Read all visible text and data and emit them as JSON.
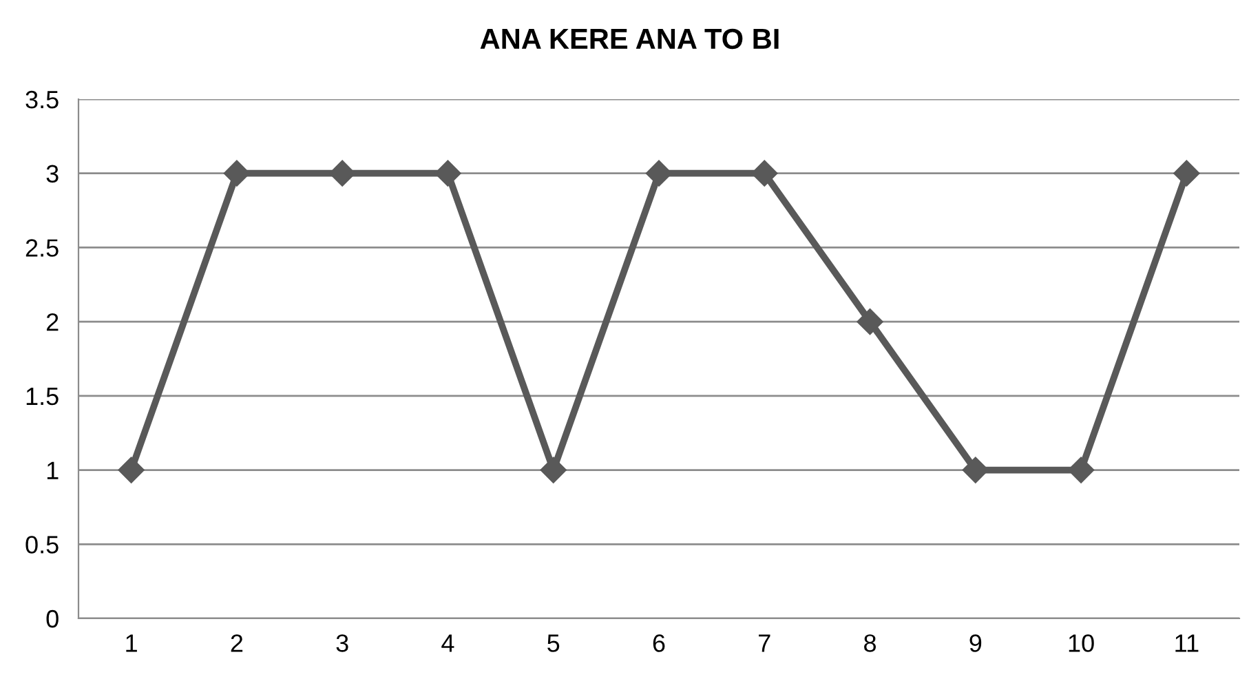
{
  "chart_data": {
    "type": "line",
    "title": "ANA KERE ANA TO BI",
    "categories": [
      "1",
      "2",
      "3",
      "4",
      "5",
      "6",
      "7",
      "8",
      "9",
      "10",
      "11"
    ],
    "series": [
      {
        "color": "#595959",
        "values": [
          1,
          3,
          3,
          3,
          1,
          3,
          3,
          2,
          1,
          1,
          3
        ]
      }
    ],
    "ylim": [
      0,
      3.5
    ],
    "yticks": [
      0,
      0.5,
      1,
      1.5,
      2,
      2.5,
      3,
      3.5
    ],
    "grid": "y",
    "marker": "diamond",
    "line_style": "solid"
  }
}
